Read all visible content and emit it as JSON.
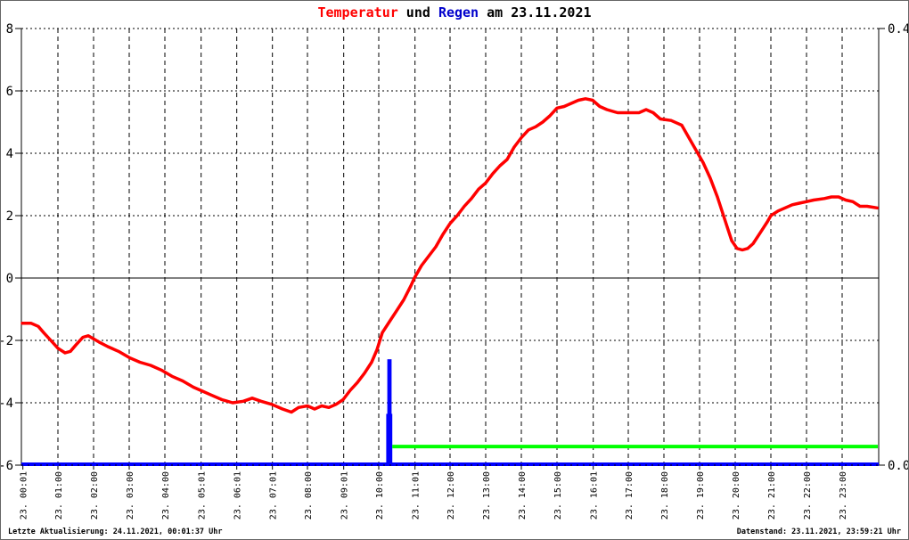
{
  "title": {
    "temperatur": "Temperatur",
    "und": " und ",
    "regen": "Regen",
    "date_suffix": " am 23.11.2021"
  },
  "footer": {
    "left": "Letzte Aktualisierung: 24.11.2021, 00:01:37 Uhr",
    "right": "Datenstand: 23.11.2021, 23:59:21 Uhr"
  },
  "colors": {
    "temperature_line": "#ff0000",
    "rain_bars": "#0000ff",
    "rain_reference": "#00ff00",
    "axis": "#000000",
    "title_temperatur": "#ff0000",
    "title_regen": "#0000cc",
    "background": "#ffffff"
  },
  "chart_data": {
    "type": "line",
    "title": "Temperatur und Regen am 23.11.2021",
    "x_axis": {
      "range_hours": [
        0,
        24
      ],
      "grid": "dashed-vertical",
      "tick_hours": [
        0.017,
        1,
        2,
        3,
        4,
        5.017,
        6.017,
        7.017,
        8,
        9.017,
        10,
        11.017,
        12,
        13,
        14,
        15,
        16.017,
        17,
        18,
        19,
        20,
        21,
        22,
        23
      ],
      "tick_labels": [
        "23. 00:01",
        "23. 01:00",
        "23. 02:00",
        "23. 03:00",
        "23. 04:00",
        "23. 05:01",
        "23. 06:01",
        "23. 07:01",
        "23. 08:00",
        "23. 09:01",
        "23. 10:00",
        "23. 11:01",
        "23. 12:00",
        "23. 13:00",
        "23. 14:00",
        "23. 15:00",
        "23. 16:01",
        "23. 17:00",
        "23. 18:00",
        "23. 19:00",
        "23. 20:00",
        "23. 21:00",
        "23. 22:00",
        "23. 23:00"
      ]
    },
    "y_axis_left": {
      "name": "Temperatur",
      "range": [
        -6,
        8
      ],
      "ticks": [
        8,
        6,
        4,
        2,
        0,
        -2,
        -4,
        -6
      ],
      "zero_line": "solid",
      "grid": "dotted-horizontal"
    },
    "y_axis_right": {
      "name": "Regen",
      "range": [
        0,
        0.4
      ],
      "ticks": [
        0.4,
        0.0
      ],
      "tick_labels": [
        "0.4",
        "0.0"
      ]
    },
    "series": [
      {
        "name": "Regen",
        "type": "bar",
        "axis": "right",
        "color": "#0000ff",
        "baseline_value": 0,
        "bars": [
          {
            "start": 10.21,
            "end": 10.38,
            "value": 0.047
          },
          {
            "start": 10.24,
            "end": 10.36,
            "value": 0.097
          }
        ]
      },
      {
        "name": "Regen-Referenz",
        "type": "segment",
        "axis": "right",
        "color": "#00ff00",
        "segment": {
          "start": 10.38,
          "end": 24,
          "value": 0.017
        }
      },
      {
        "name": "Temperatur",
        "type": "line",
        "axis": "left",
        "color": "#ff0000",
        "points": [
          [
            0.0,
            -1.45
          ],
          [
            0.25,
            -1.45
          ],
          [
            0.45,
            -1.55
          ],
          [
            0.6,
            -1.75
          ],
          [
            0.8,
            -2.0
          ],
          [
            1.0,
            -2.25
          ],
          [
            1.2,
            -2.4
          ],
          [
            1.35,
            -2.35
          ],
          [
            1.5,
            -2.15
          ],
          [
            1.7,
            -1.9
          ],
          [
            1.85,
            -1.85
          ],
          [
            2.0,
            -1.95
          ],
          [
            2.15,
            -2.05
          ],
          [
            2.4,
            -2.2
          ],
          [
            2.7,
            -2.35
          ],
          [
            3.0,
            -2.55
          ],
          [
            3.3,
            -2.7
          ],
          [
            3.6,
            -2.8
          ],
          [
            3.9,
            -2.95
          ],
          [
            4.2,
            -3.15
          ],
          [
            4.5,
            -3.3
          ],
          [
            4.8,
            -3.5
          ],
          [
            5.0,
            -3.6
          ],
          [
            5.3,
            -3.75
          ],
          [
            5.6,
            -3.9
          ],
          [
            5.9,
            -4.0
          ],
          [
            6.2,
            -3.95
          ],
          [
            6.45,
            -3.85
          ],
          [
            6.7,
            -3.95
          ],
          [
            7.0,
            -4.05
          ],
          [
            7.3,
            -4.2
          ],
          [
            7.55,
            -4.3
          ],
          [
            7.75,
            -4.15
          ],
          [
            8.0,
            -4.1
          ],
          [
            8.2,
            -4.2
          ],
          [
            8.4,
            -4.1
          ],
          [
            8.6,
            -4.15
          ],
          [
            8.8,
            -4.05
          ],
          [
            9.0,
            -3.9
          ],
          [
            9.2,
            -3.6
          ],
          [
            9.4,
            -3.35
          ],
          [
            9.6,
            -3.05
          ],
          [
            9.8,
            -2.7
          ],
          [
            9.95,
            -2.3
          ],
          [
            10.1,
            -1.75
          ],
          [
            10.3,
            -1.4
          ],
          [
            10.5,
            -1.05
          ],
          [
            10.7,
            -0.7
          ],
          [
            10.9,
            -0.25
          ],
          [
            11.0,
            0.0
          ],
          [
            11.2,
            0.4
          ],
          [
            11.4,
            0.7
          ],
          [
            11.6,
            1.0
          ],
          [
            11.8,
            1.4
          ],
          [
            12.0,
            1.75
          ],
          [
            12.2,
            2.0
          ],
          [
            12.4,
            2.3
          ],
          [
            12.6,
            2.55
          ],
          [
            12.8,
            2.85
          ],
          [
            13.0,
            3.05
          ],
          [
            13.2,
            3.35
          ],
          [
            13.4,
            3.6
          ],
          [
            13.6,
            3.8
          ],
          [
            13.8,
            4.2
          ],
          [
            14.0,
            4.5
          ],
          [
            14.2,
            4.75
          ],
          [
            14.4,
            4.85
          ],
          [
            14.6,
            5.0
          ],
          [
            14.8,
            5.2
          ],
          [
            15.0,
            5.45
          ],
          [
            15.2,
            5.5
          ],
          [
            15.4,
            5.6
          ],
          [
            15.6,
            5.7
          ],
          [
            15.8,
            5.75
          ],
          [
            16.0,
            5.7
          ],
          [
            16.2,
            5.5
          ],
          [
            16.4,
            5.4
          ],
          [
            16.7,
            5.3
          ],
          [
            17.0,
            5.3
          ],
          [
            17.3,
            5.3
          ],
          [
            17.5,
            5.4
          ],
          [
            17.7,
            5.3
          ],
          [
            17.9,
            5.1
          ],
          [
            18.2,
            5.05
          ],
          [
            18.5,
            4.9
          ],
          [
            18.7,
            4.5
          ],
          [
            18.9,
            4.1
          ],
          [
            19.1,
            3.7
          ],
          [
            19.3,
            3.2
          ],
          [
            19.5,
            2.6
          ],
          [
            19.7,
            1.9
          ],
          [
            19.9,
            1.2
          ],
          [
            20.05,
            0.95
          ],
          [
            20.2,
            0.9
          ],
          [
            20.35,
            0.95
          ],
          [
            20.5,
            1.1
          ],
          [
            20.7,
            1.45
          ],
          [
            20.9,
            1.8
          ],
          [
            21.0,
            2.0
          ],
          [
            21.2,
            2.15
          ],
          [
            21.4,
            2.25
          ],
          [
            21.6,
            2.35
          ],
          [
            21.8,
            2.4
          ],
          [
            22.0,
            2.45
          ],
          [
            22.2,
            2.5
          ],
          [
            22.5,
            2.55
          ],
          [
            22.7,
            2.6
          ],
          [
            22.9,
            2.6
          ],
          [
            23.1,
            2.5
          ],
          [
            23.3,
            2.45
          ],
          [
            23.5,
            2.3
          ],
          [
            23.7,
            2.3
          ],
          [
            23.98,
            2.25
          ]
        ]
      }
    ]
  }
}
